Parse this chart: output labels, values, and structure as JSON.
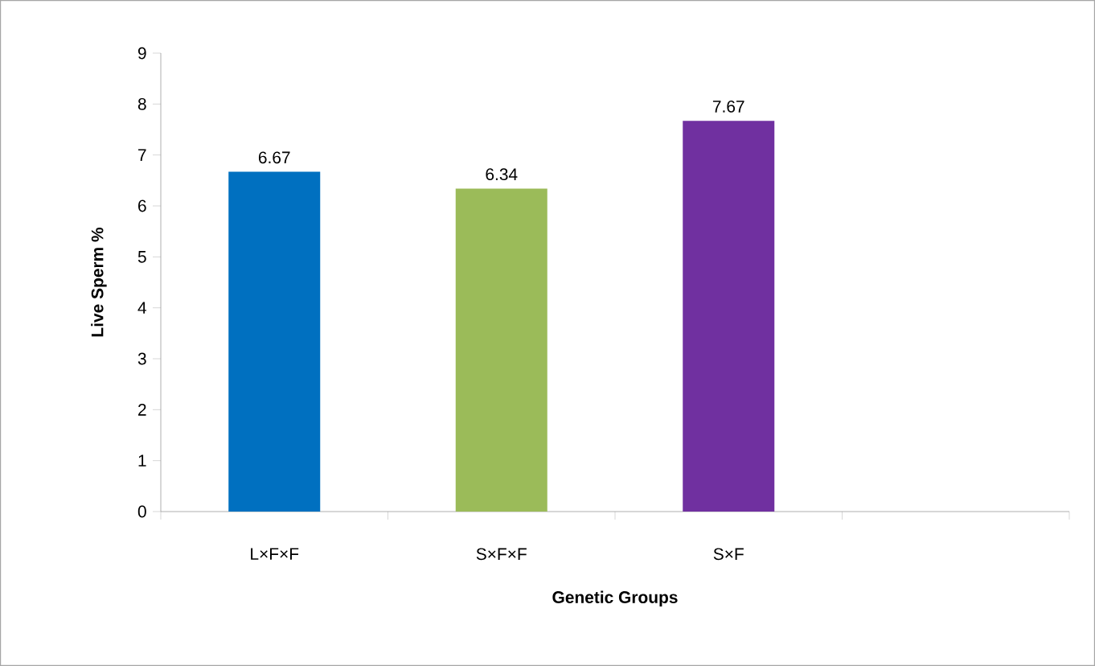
{
  "chart_data": {
    "type": "bar",
    "xlabel": "Genetic Groups",
    "ylabel": "Live Sperm %",
    "categories": [
      "L×F×F",
      "S×F×F",
      "S×F",
      null
    ],
    "values": [
      6.67,
      6.34,
      7.67,
      null
    ],
    "colors": [
      "#0070c0",
      "#9bbb59",
      "#7030a0",
      "#000000"
    ],
    "ylim": [
      0,
      9
    ],
    "yticks": [
      0,
      1,
      2,
      3,
      4,
      5,
      6,
      7,
      8,
      9
    ],
    "data_labels": true
  }
}
